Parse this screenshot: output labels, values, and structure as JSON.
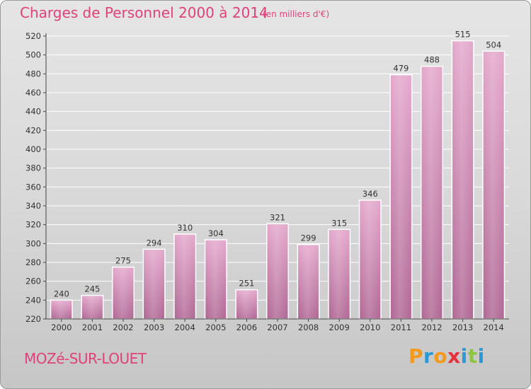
{
  "header": {
    "title": "Charges de Personnel 2000 à 2014",
    "subtitle": "(en milliers d'€)"
  },
  "footer": {
    "commune": "MOZé-SUR-LOUET",
    "logo_letters": [
      "P",
      "r",
      "o",
      "x",
      "i",
      "t",
      "i"
    ],
    "logo_colors": [
      "#f39a1c",
      "#2a9ad6",
      "#f39a1c",
      "#e5323d",
      "#2a9ad6",
      "#8cc63e",
      "#2a9ad6"
    ]
  },
  "colors": {
    "accent": "#e0417a",
    "bar_top": "#e4a8cc",
    "bar_bottom": "#b06794",
    "grid": "#ffffff",
    "axis": "#444444"
  },
  "chart_data": {
    "type": "bar",
    "title": "Charges de Personnel 2000 à 2014",
    "subtitle": "(en milliers d'€)",
    "categories": [
      "2000",
      "2001",
      "2002",
      "2003",
      "2004",
      "2005",
      "2006",
      "2007",
      "2008",
      "2009",
      "2010",
      "2011",
      "2012",
      "2013",
      "2014"
    ],
    "values": [
      240,
      245,
      275,
      294,
      310,
      304,
      251,
      321,
      299,
      315,
      346,
      479,
      488,
      515,
      504
    ],
    "ylim": [
      220,
      520
    ],
    "yticks": [
      "220",
      "240",
      "260",
      "280",
      "300",
      "320",
      "340",
      "360",
      "380",
      "400",
      "420",
      "440",
      "460",
      "480",
      "500",
      "520"
    ],
    "xlabel": "",
    "ylabel": "",
    "grid": true
  }
}
